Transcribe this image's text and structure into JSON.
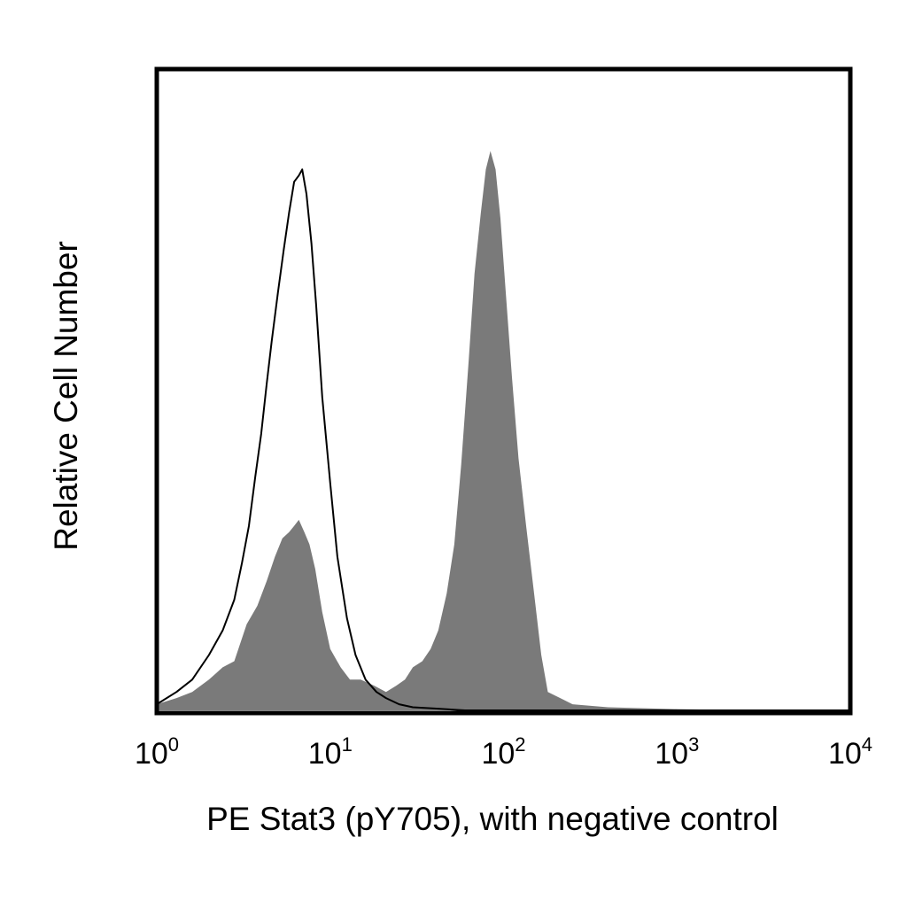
{
  "chart_data": {
    "type": "area",
    "title": "",
    "xlabel": "PE Stat3 (pY705), with negative control",
    "ylabel": "Relative Cell Number",
    "x_scale": "log",
    "xlim": [
      1,
      10000
    ],
    "ylim": [
      0,
      100
    ],
    "grid": false,
    "legend": "none",
    "x_ticks": [
      {
        "value": 1,
        "base": "10",
        "exp": "0"
      },
      {
        "value": 10,
        "base": "10",
        "exp": "1"
      },
      {
        "value": 100,
        "base": "10",
        "exp": "2"
      },
      {
        "value": 1000,
        "base": "10",
        "exp": "3"
      },
      {
        "value": 10000,
        "base": "10",
        "exp": "4"
      }
    ],
    "series": [
      {
        "style": "filled",
        "color": "#7a7a7a",
        "x": [
          1,
          1.3,
          1.6,
          2,
          2.4,
          2.8,
          3.3,
          3.8,
          4.3,
          4.8,
          5.3,
          5.8,
          6.2,
          6.6,
          7.1,
          7.6,
          8.2,
          9,
          10,
          11.5,
          13,
          15,
          18,
          21,
          24,
          27,
          30,
          34,
          38,
          42,
          47,
          52,
          57,
          63,
          68,
          74,
          79,
          84,
          90,
          96,
          103,
          112,
          122,
          135,
          150,
          165,
          180,
          250,
          400,
          1000,
          3000,
          10000
        ],
        "y": [
          1,
          2,
          3,
          5,
          7,
          8,
          14,
          17,
          21,
          25,
          28,
          29,
          30,
          31,
          29,
          27,
          23,
          16,
          10,
          7,
          5,
          5,
          4,
          3,
          4,
          5,
          7,
          8,
          10,
          13,
          19,
          27,
          40,
          57,
          71,
          81,
          88,
          91,
          88,
          80,
          68,
          54,
          41,
          30,
          19,
          9,
          3,
          1,
          0.5,
          0.2,
          0,
          0
        ]
      },
      {
        "style": "line",
        "color": "#000000",
        "x": [
          1,
          1.3,
          1.6,
          2,
          2.4,
          2.8,
          3.1,
          3.4,
          3.7,
          4,
          4.3,
          4.6,
          5,
          5.4,
          5.8,
          6.2,
          6.6,
          6.9,
          7.3,
          7.8,
          8.3,
          9,
          10,
          11,
          12.5,
          14,
          16,
          18.5,
          21,
          25,
          30,
          40,
          60,
          100,
          10000
        ],
        "y": [
          1,
          3,
          5,
          9,
          13,
          18,
          24,
          30,
          38,
          45,
          53,
          60,
          68,
          75,
          81,
          86,
          87,
          88,
          84,
          76,
          66,
          51,
          37,
          25,
          15,
          9,
          5,
          3,
          2,
          1,
          0.5,
          0.3,
          0,
          0,
          0
        ]
      }
    ]
  }
}
